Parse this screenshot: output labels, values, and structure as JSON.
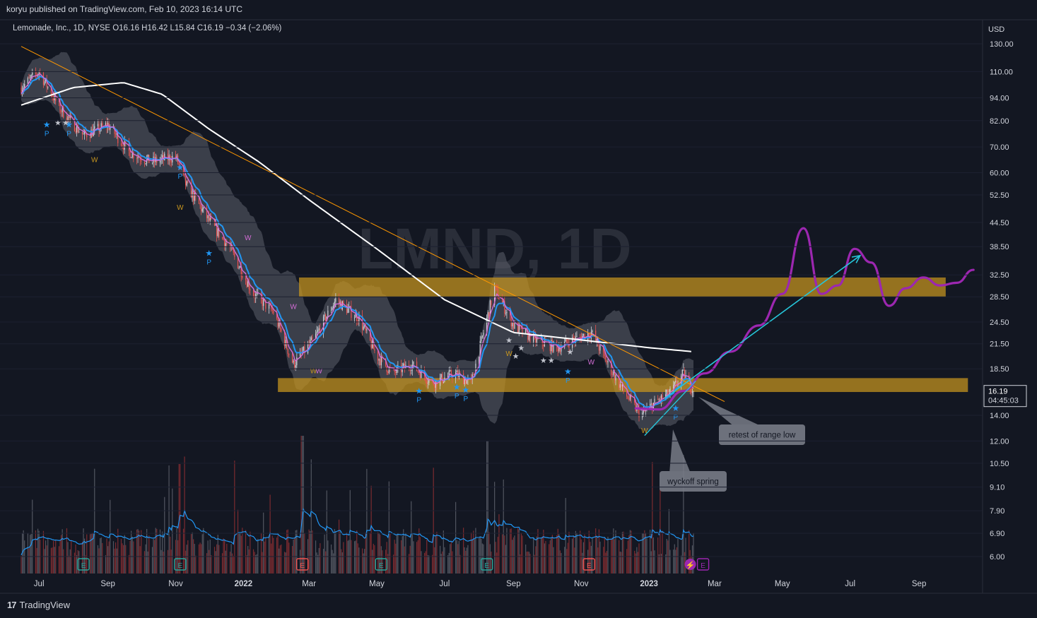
{
  "header": {
    "published": "koryu published on TradingView.com, Feb 10, 2023 16:14 UTC",
    "legend": "Lemonade, Inc., 1D, NYSE  O16.16  H16.42  L15.84  C16.19  −0.34 (−2.06%)",
    "watermark": "LMND, 1D"
  },
  "footer": {
    "brand": "TradingView",
    "logo_icon": "tradingview-logo-icon"
  },
  "price_axis": {
    "currency": "USD",
    "ticks": [
      "130.00",
      "110.00",
      "94.00",
      "82.00",
      "70.00",
      "60.00",
      "52.50",
      "44.50",
      "38.50",
      "32.50",
      "28.50",
      "24.50",
      "21.50",
      "18.50",
      "14.00",
      "12.00",
      "10.50",
      "9.10",
      "7.90",
      "6.90",
      "6.00"
    ],
    "last_price": "16.19",
    "countdown": "04:45:03"
  },
  "time_axis": {
    "ticks": [
      "Jul",
      "Sep",
      "Nov",
      "2022",
      "Mar",
      "May",
      "Jul",
      "Sep",
      "Nov",
      "2023",
      "Mar",
      "May",
      "Jul",
      "Sep"
    ]
  },
  "annotations": {
    "retest": "retest of range low",
    "spring": "wyckoff spring"
  },
  "event_markers": {
    "earnings": "E",
    "labels": {
      "pivot": "P",
      "wave": "W"
    }
  },
  "colors": {
    "background": "#131722",
    "up_candle": "#d1d4dc",
    "down_candle": "#ef5350",
    "zone": "#c8961e",
    "trendline": "#ff9800",
    "ma_long": "#ffffff",
    "ema_fast": "#2196f3",
    "ema_slow": "#d36dd6",
    "projection": "#9c27b0",
    "arrow": "#26c6da",
    "volume_ma": "#2196f3"
  },
  "chart_data": {
    "type": "line",
    "symbol": "LMND",
    "interval": "1D",
    "scale": "log",
    "currency": "USD",
    "ohlc_last": {
      "open": 16.16,
      "high": 16.42,
      "low": 15.84,
      "close": 16.19,
      "change": -0.34,
      "change_pct": -2.06
    },
    "series": [
      {
        "name": "",
        "x": [
          "2021-06-15",
          "2021-07-01",
          "2021-07-20",
          "2021-08-10",
          "2021-09-01",
          "2021-09-20",
          "2021-10-10",
          "2021-11-01",
          "2021-11-10",
          "2021-12-01",
          "2021-12-20",
          "2022-01-10",
          "2022-01-28",
          "2022-02-15",
          "2022-03-05",
          "2022-03-25",
          "2022-04-15",
          "2022-05-01",
          "2022-05-15",
          "2022-06-01",
          "2022-06-20",
          "2022-07-10",
          "2022-07-25",
          "2022-08-05",
          "2022-08-15",
          "2022-09-01",
          "2022-09-20",
          "2022-10-10",
          "2022-10-25",
          "2022-11-10",
          "2022-11-25",
          "2022-12-10",
          "2022-12-25",
          "2023-01-05",
          "2023-01-20",
          "2023-02-01",
          "2023-02-10"
        ],
        "values": [
          100,
          110,
          88,
          75,
          80,
          68,
          64,
          66,
          56,
          45,
          38,
          29,
          26,
          19,
          22,
          28,
          25,
          20,
          18,
          19,
          17,
          18,
          17,
          23,
          30,
          24,
          22,
          21,
          22,
          23,
          19,
          16,
          14,
          15,
          16,
          18,
          16.19
        ]
      },
      {
        "name": "",
        "x": [
          "2021-06-15",
          "2021-08-01",
          "2021-09-15",
          "2021-10-20",
          "2021-12-01",
          "2022-01-15",
          "2022-03-01",
          "2022-05-01",
          "2022-07-01",
          "2022-09-01",
          "2022-11-01",
          "2023-01-01",
          "2023-02-10"
        ],
        "values": [
          90,
          100,
          103,
          96,
          78,
          64,
          51,
          38,
          28,
          23,
          22,
          21,
          20.5
        ]
      }
    ],
    "zones": [
      {
        "from": 28.5,
        "to": 32
      },
      {
        "from": 16.1,
        "to": 17.5
      }
    ],
    "trendline": {
      "start": {
        "x": "2021-06-15",
        "y": 128
      },
      "end": {
        "x": "2023-03-10",
        "y": 15.2
      }
    },
    "projection": {
      "x": [
        "2022-12-20",
        "2023-01-10",
        "2023-02-01",
        "2023-02-20",
        "2023-03-15",
        "2023-04-10",
        "2023-05-01",
        "2023-05-20",
        "2023-06-05",
        "2023-06-20",
        "2023-07-05",
        "2023-07-20",
        "2023-08-05",
        "2023-08-20",
        "2023-09-05",
        "2023-09-20",
        "2023-10-05",
        "2023-10-20"
      ],
      "values": [
        14.6,
        14.5,
        16.2,
        18.0,
        20.5,
        24.0,
        29.0,
        43.0,
        29.0,
        30.5,
        38.0,
        35.0,
        27.0,
        30.0,
        32.0,
        30.5,
        31.0,
        33.5
      ]
    },
    "arrow": {
      "start": {
        "x": "2023-01-15",
        "y": 15.5
      },
      "end": {
        "x": "2023-07-10",
        "y": 36.5
      }
    }
  }
}
